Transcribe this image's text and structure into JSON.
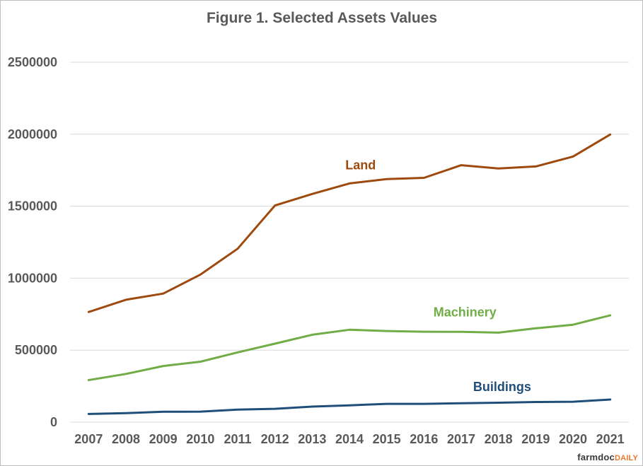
{
  "chart_data": {
    "type": "line",
    "title": "Figure 1.  Selected Assets Values",
    "xlabel": "",
    "ylabel": "",
    "categories": [
      "2007",
      "2008",
      "2009",
      "2010",
      "2011",
      "2012",
      "2013",
      "2014",
      "2015",
      "2016",
      "2017",
      "2018",
      "2019",
      "2020",
      "2021"
    ],
    "ylim": [
      0,
      2500000
    ],
    "yticks": [
      "0",
      "500000",
      "1000000",
      "1500000",
      "2000000",
      "2500000"
    ],
    "grid": true,
    "legend": "inline labels",
    "series": [
      {
        "name": "Land",
        "color": "#9e4a0e",
        "values": [
          765000,
          850000,
          893000,
          1025000,
          1205000,
          1505000,
          1585000,
          1658000,
          1688000,
          1697000,
          1785000,
          1762000,
          1776000,
          1845000,
          1998000
        ]
      },
      {
        "name": "Machinery",
        "color": "#70ad47",
        "values": [
          292000,
          335000,
          390000,
          420000,
          485000,
          545000,
          607000,
          642000,
          633000,
          628000,
          627000,
          622000,
          652000,
          677000,
          742000
        ]
      },
      {
        "name": "Buildings",
        "color": "#1f4e79",
        "values": [
          57000,
          63000,
          72000,
          73000,
          87000,
          93000,
          108000,
          117000,
          127000,
          127000,
          131000,
          135000,
          140000,
          142000,
          157000
        ]
      }
    ]
  },
  "branding": {
    "logo_part1": "farmdoc",
    "logo_part2": "DAILY"
  }
}
